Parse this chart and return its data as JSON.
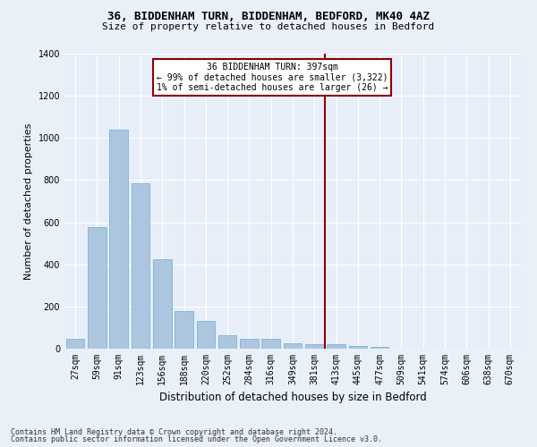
{
  "title_line1": "36, BIDDENHAM TURN, BIDDENHAM, BEDFORD, MK40 4AZ",
  "title_line2": "Size of property relative to detached houses in Bedford",
  "xlabel": "Distribution of detached houses by size in Bedford",
  "ylabel": "Number of detached properties",
  "footnote1": "Contains HM Land Registry data © Crown copyright and database right 2024.",
  "footnote2": "Contains public sector information licensed under the Open Government Licence v3.0.",
  "annotation_line1": "36 BIDDENHAM TURN: 397sqm",
  "annotation_line2": "← 99% of detached houses are smaller (3,322)",
  "annotation_line3": "1% of semi-detached houses are larger (26) →",
  "bar_color": "#adc6e0",
  "bar_edge_color": "#6aaad4",
  "background_color": "#e8eef8",
  "grid_color": "#ffffff",
  "vline_color": "#8b0000",
  "annotation_box_edge": "#8b0000",
  "fig_background": "#eaf0f8",
  "categories": [
    "27sqm",
    "59sqm",
    "91sqm",
    "123sqm",
    "156sqm",
    "188sqm",
    "220sqm",
    "252sqm",
    "284sqm",
    "316sqm",
    "349sqm",
    "381sqm",
    "413sqm",
    "445sqm",
    "477sqm",
    "509sqm",
    "541sqm",
    "574sqm",
    "606sqm",
    "638sqm",
    "670sqm"
  ],
  "values": [
    47,
    575,
    1040,
    785,
    425,
    180,
    130,
    63,
    47,
    47,
    27,
    23,
    20,
    12,
    8,
    2,
    0,
    0,
    0,
    0,
    0
  ],
  "ylim": [
    0,
    1400
  ],
  "yticks": [
    0,
    200,
    400,
    600,
    800,
    1000,
    1200,
    1400
  ],
  "vline_x_index": 11.5,
  "title_fontsize": 9,
  "subtitle_fontsize": 8,
  "ylabel_fontsize": 8,
  "xlabel_fontsize": 8.5,
  "tick_fontsize": 7,
  "annotation_fontsize": 7,
  "footnote_fontsize": 6
}
